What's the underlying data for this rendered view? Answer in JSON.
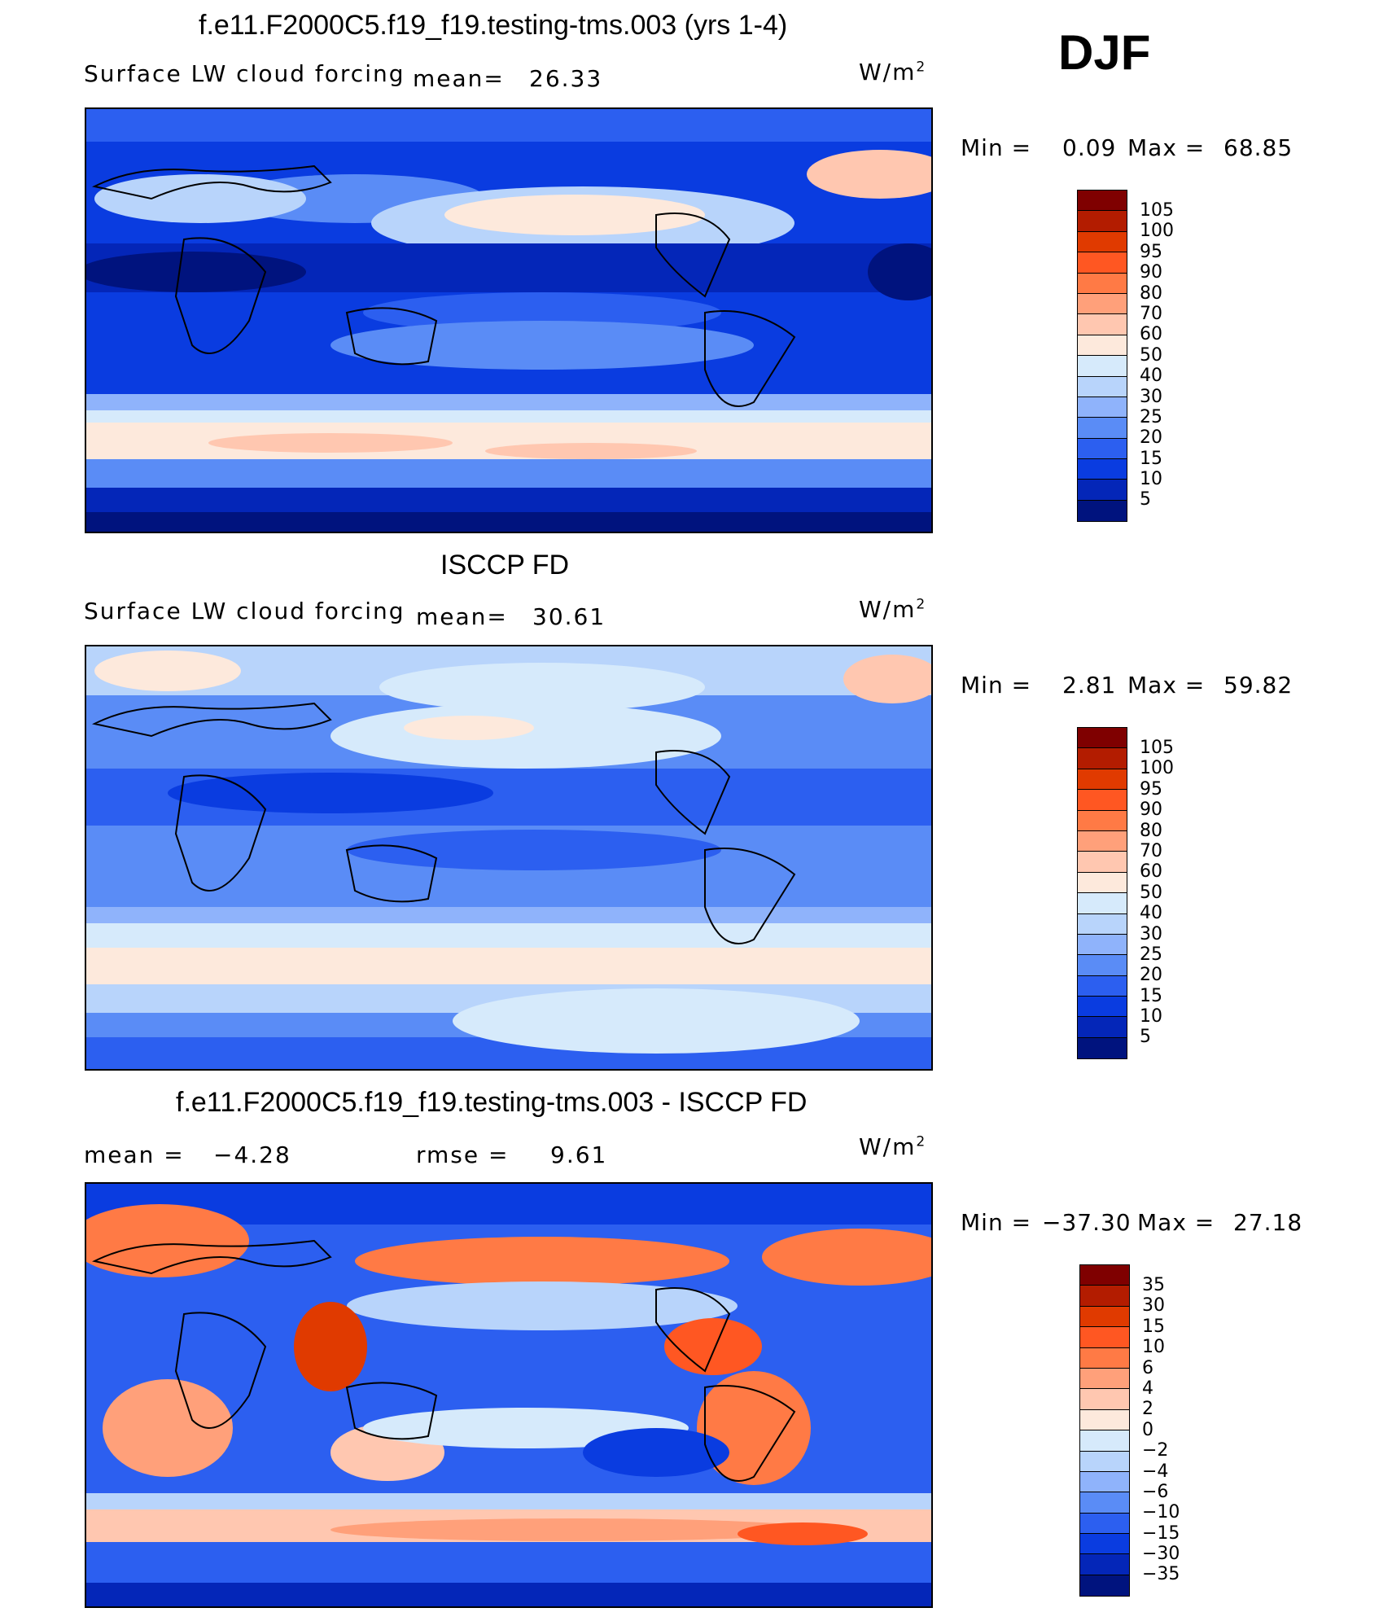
{
  "header": {
    "season": "DJF"
  },
  "panels": [
    {
      "title": "f.e11.F2000C5.f19_f19.testing-tms.003 (yrs 1-4)",
      "variable": "Surface LW cloud forcing",
      "stat_label": "mean=",
      "stat_value": "26.33",
      "units": "W/m",
      "units_exp": "2",
      "min_label": "Min =",
      "min_value": "0.09",
      "max_label": "Max =",
      "max_value": "68.85"
    },
    {
      "title": "ISCCP FD",
      "variable": "Surface LW cloud forcing",
      "stat_label": "mean=",
      "stat_value": "30.61",
      "units": "W/m",
      "units_exp": "2",
      "min_label": "Min =",
      "min_value": "2.81",
      "max_label": "Max =",
      "max_value": "59.82"
    },
    {
      "title": "f.e11.F2000C5.f19_f19.testing-tms.003 - ISCCP FD",
      "mean_label": "mean =",
      "mean_value": "−4.28",
      "rmse_label": "rmse =",
      "rmse_value": "9.61",
      "units": "W/m",
      "units_exp": "2",
      "min_label": "Min =",
      "min_value": "−37.30",
      "max_label": "Max =",
      "max_value": "27.18"
    }
  ],
  "colorbars": {
    "abs_levels": [
      "105",
      "100",
      "95",
      "90",
      "80",
      "70",
      "60",
      "50",
      "40",
      "30",
      "25",
      "20",
      "15",
      "10",
      "5"
    ],
    "abs_colors": [
      "#7f0000",
      "#b31c00",
      "#e03a00",
      "#ff5722",
      "#ff7a45",
      "#ffa07a",
      "#ffc7b0",
      "#fde9dc",
      "#d6eafb",
      "#b8d4fb",
      "#8fb3fb",
      "#5a8cf6",
      "#2c5ff0",
      "#0a3ce0",
      "#0426b8",
      "#00137e"
    ],
    "diff_levels": [
      "35",
      "30",
      "15",
      "10",
      "6",
      "4",
      "2",
      "0",
      "−2",
      "−4",
      "−6",
      "−10",
      "−15",
      "−30",
      "−35"
    ],
    "diff_colors": [
      "#7f0000",
      "#b31c00",
      "#e03a00",
      "#ff5722",
      "#ff7a45",
      "#ffa07a",
      "#ffc7b0",
      "#fde9dc",
      "#d6eafb",
      "#b8d4fb",
      "#8fb3fb",
      "#5a8cf6",
      "#2c5ff0",
      "#0a3ce0",
      "#0426b8",
      "#00137e"
    ]
  }
}
